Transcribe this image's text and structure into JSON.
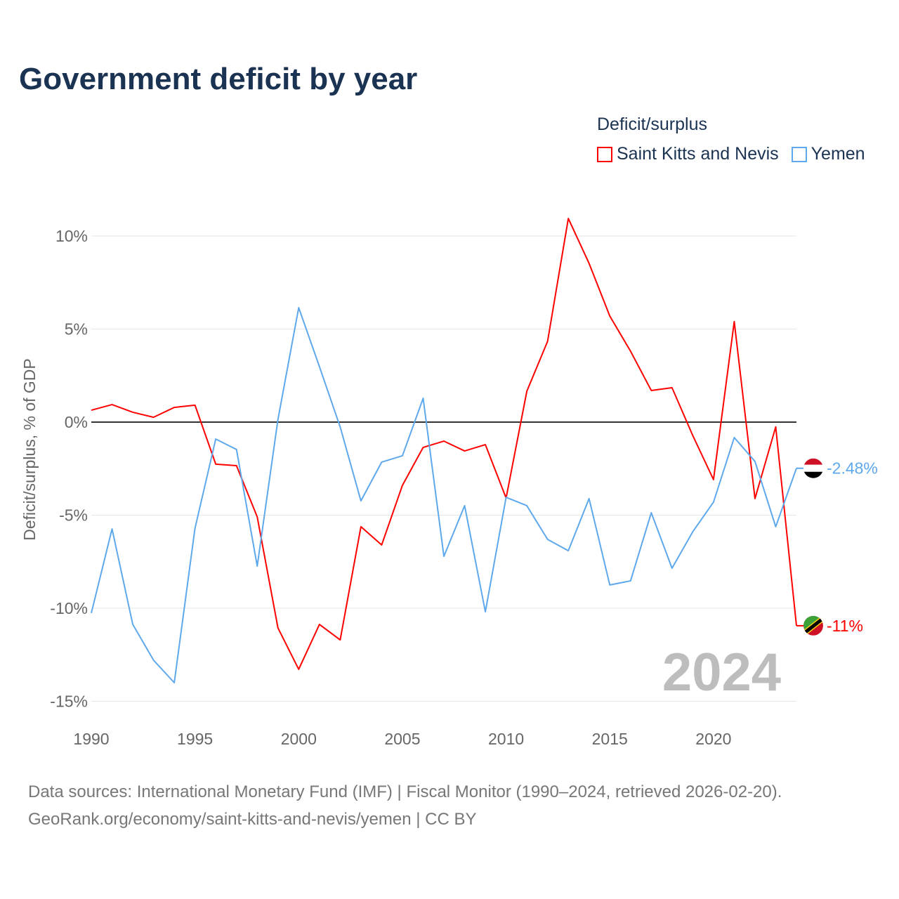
{
  "title": "Government deficit by year",
  "footer": {
    "line1": "Data sources: International Monetary Fund (IMF) | Fiscal Monitor (1990–2024, retrieved 2026-02-20).",
    "line2": "GeoRank.org/economy/saint-kitts-and-nevis/yemen | CC BY"
  },
  "chart_data": {
    "type": "line",
    "title": "Government deficit by year",
    "xlabel": "",
    "ylabel": "Deficit/surplus, % of GDP",
    "legend_title": "Deficit/surplus",
    "legend_position": "top-right",
    "year_watermark": "2024",
    "xlim": [
      1990,
      2024
    ],
    "ylim": [
      -15,
      11
    ],
    "x_ticks": [
      "1990",
      "1995",
      "2000",
      "2005",
      "2010",
      "2015",
      "2020"
    ],
    "y_ticks": [
      {
        "v": 10,
        "label": "10%"
      },
      {
        "v": 5,
        "label": "5%"
      },
      {
        "v": 0,
        "label": "0%"
      },
      {
        "v": -5,
        "label": "-5%"
      },
      {
        "v": -10,
        "label": "-10%"
      },
      {
        "v": -15,
        "label": "-15%"
      }
    ],
    "x": [
      1990,
      1991,
      1992,
      1993,
      1994,
      1995,
      1996,
      1997,
      1998,
      1999,
      2000,
      2001,
      2002,
      2003,
      2004,
      2005,
      2006,
      2007,
      2008,
      2009,
      2010,
      2011,
      2012,
      2013,
      2014,
      2015,
      2016,
      2017,
      2018,
      2019,
      2020,
      2021,
      2022,
      2023,
      2024
    ],
    "series": [
      {
        "name": "Saint Kitts and Nevis",
        "color": "#ff0000",
        "end_label": "-11%",
        "values": [
          0.64,
          0.94,
          0.53,
          0.26,
          0.79,
          0.91,
          -2.26,
          -2.34,
          -5.09,
          -11.06,
          -13.28,
          -10.87,
          -11.7,
          -5.62,
          -6.6,
          -3.4,
          -1.36,
          -1.02,
          -1.55,
          -1.21,
          -4.08,
          1.66,
          4.34,
          10.94,
          8.53,
          5.7,
          3.81,
          1.7,
          1.85,
          -0.72,
          -3.09,
          5.4,
          -4.11,
          -0.26,
          -10.94
        ]
      },
      {
        "name": "Yemen",
        "color": "#5ea8ec",
        "end_label": "-2.48%",
        "values": [
          -10.26,
          -5.74,
          -10.87,
          -12.79,
          -14.0,
          -5.7,
          -0.91,
          -1.47,
          -7.74,
          0.15,
          6.15,
          2.98,
          -0.26,
          -4.23,
          -2.15,
          -1.81,
          1.28,
          -7.21,
          -4.49,
          -10.19,
          -4.04,
          -4.49,
          -6.3,
          -6.91,
          -4.11,
          -8.75,
          -8.53,
          -4.87,
          -7.85,
          -5.89,
          -4.3,
          -0.83,
          -2.11,
          -5.62,
          -2.48
        ]
      }
    ]
  }
}
